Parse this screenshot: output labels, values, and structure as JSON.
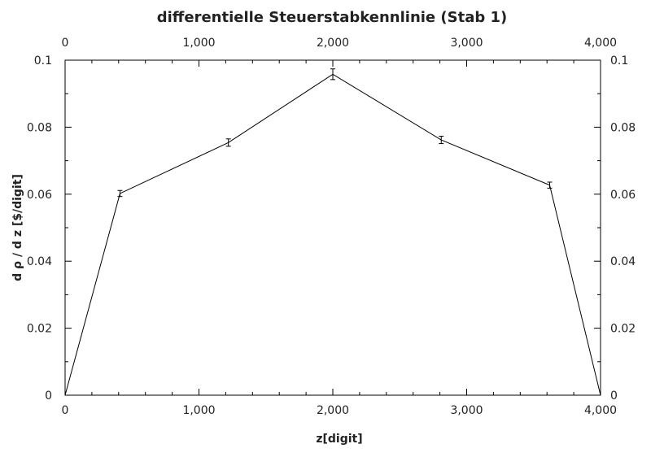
{
  "chart_data": {
    "type": "line",
    "title": "differentielle Steuerstabkennlinie (Stab 1)",
    "xlabel": "z[digit]",
    "ylabel": "d ρ / d z [$/digit]",
    "xlim": [
      0,
      4000
    ],
    "ylim": [
      0,
      0.1
    ],
    "x_ticks": [
      0,
      1000,
      2000,
      3000,
      4000
    ],
    "x_tick_labels": [
      "0",
      "1,000",
      "2,000",
      "3,000",
      "4,000"
    ],
    "y_ticks": [
      0,
      0.02,
      0.04,
      0.06,
      0.08,
      0.1
    ],
    "y_tick_labels": [
      "0",
      "0.02",
      "0.04",
      "0.06",
      "0.08",
      "0.1"
    ],
    "mirror_axes": true,
    "grid": false,
    "series": [
      {
        "x": [
          0,
          410,
          1220,
          2000,
          2810,
          3620,
          4000
        ],
        "y": [
          0,
          0.0602,
          0.0754,
          0.0958,
          0.0762,
          0.0627,
          0
        ],
        "yerr": [
          0,
          0.0009,
          0.0011,
          0.0016,
          0.0011,
          0.0009,
          0
        ]
      }
    ]
  }
}
